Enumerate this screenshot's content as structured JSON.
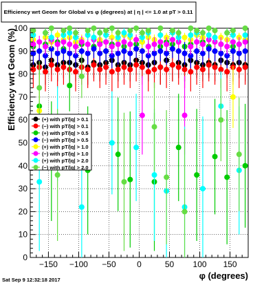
{
  "chart_data": {
    "type": "scatter",
    "title": "Efficiency wrt Geom for Global vs φ (degrees) at | η | <= 1.0 at pT > 0.11",
    "xlabel": "φ (degrees)",
    "ylabel": "Efficiency wrt Geom (%)",
    "xlim": [
      -180,
      180
    ],
    "ylim": [
      0,
      100
    ],
    "x_ticks": [
      -150,
      -100,
      -50,
      0,
      50,
      100,
      150
    ],
    "x_tick_labels": [
      "−150",
      "−100",
      "−50",
      "0",
      "50",
      "100",
      "150"
    ],
    "y_ticks": [
      0,
      10,
      20,
      30,
      40,
      50,
      60,
      70,
      80,
      90,
      100
    ],
    "y_tick_labels": [
      "0",
      "10",
      "20",
      "30",
      "40",
      "50",
      "60",
      "70",
      "80",
      "90",
      "100"
    ],
    "grid": true,
    "legend_position": "left-middle",
    "series": [
      {
        "name": "(+) with pT/|q| > 0.1",
        "color": "#000000",
        "marker": "circle",
        "x": [
          -175,
          -165,
          -155,
          -145,
          -135,
          -125,
          -115,
          -105,
          -95,
          -85,
          -75,
          -65,
          -55,
          -45,
          -35,
          -25,
          -15,
          -5,
          5,
          15,
          25,
          35,
          45,
          55,
          65,
          75,
          85,
          95,
          105,
          115,
          125,
          135,
          145,
          155,
          165,
          175
        ],
        "values": [
          84,
          85,
          83,
          86,
          84,
          85,
          85,
          84,
          86,
          83,
          85,
          84,
          85,
          86,
          84,
          85,
          84,
          86,
          85,
          84,
          85,
          83,
          86,
          84,
          85,
          84,
          86,
          85,
          84,
          85,
          84,
          86,
          85,
          84,
          85,
          84
        ]
      },
      {
        "name": "(−) with pT/|q| > 0.1",
        "color": "#ff0000",
        "marker": "circle",
        "x": [
          -175,
          -165,
          -155,
          -145,
          -135,
          -125,
          -115,
          -105,
          -95,
          -85,
          -75,
          -65,
          -55,
          -45,
          -35,
          -25,
          -15,
          -5,
          5,
          15,
          25,
          35,
          45,
          55,
          65,
          75,
          85,
          95,
          105,
          115,
          125,
          135,
          145,
          155,
          165,
          175
        ],
        "values": [
          82,
          83,
          81,
          84,
          82,
          83,
          82,
          81,
          83,
          82,
          84,
          82,
          83,
          81,
          82,
          83,
          82,
          84,
          83,
          81,
          82,
          83,
          82,
          84,
          83,
          82,
          81,
          83,
          82,
          84,
          83,
          82,
          81,
          83,
          82,
          83
        ]
      },
      {
        "name": "(+) with pT/|q| > 0.5",
        "color": "#00cc00",
        "marker": "circle",
        "x": [
          -175,
          -165,
          -155,
          -145,
          -135,
          -125,
          -115,
          -105,
          -95,
          -85,
          -75,
          -65,
          -55,
          -45,
          -35,
          -25,
          -15,
          -5,
          5,
          15,
          25,
          35,
          45,
          55,
          65,
          75,
          85,
          95,
          105,
          115,
          125,
          135,
          145,
          155,
          165,
          175
        ],
        "values": [
          92,
          66,
          93,
          42,
          94,
          91,
          75,
          92,
          93,
          38,
          92,
          94,
          90,
          93,
          45,
          92,
          34,
          93,
          94,
          92,
          33,
          92,
          94,
          93,
          48,
          92,
          93,
          36,
          94,
          92,
          44,
          93,
          35,
          92,
          93,
          40
        ]
      },
      {
        "name": "(−) with pT/|q| > 0.5",
        "color": "#0000ff",
        "marker": "circle",
        "x": [
          -175,
          -165,
          -155,
          -145,
          -135,
          -125,
          -115,
          -105,
          -95,
          -85,
          -75,
          -65,
          -55,
          -45,
          -35,
          -25,
          -15,
          -5,
          5,
          15,
          25,
          35,
          45,
          55,
          65,
          75,
          85,
          95,
          105,
          115,
          125,
          135,
          145,
          155,
          165,
          175
        ],
        "values": [
          89,
          90,
          88,
          91,
          89,
          90,
          89,
          88,
          90,
          89,
          91,
          89,
          90,
          88,
          89,
          90,
          89,
          91,
          90,
          88,
          89,
          90,
          89,
          91,
          90,
          89,
          88,
          90,
          89,
          91,
          90,
          89,
          88,
          90,
          89,
          90
        ]
      },
      {
        "name": "(+) with pT/|q| > 1.0",
        "color": "#ffff00",
        "marker": "circle",
        "x": [
          -175,
          -165,
          -155,
          -145,
          -135,
          -125,
          -115,
          -105,
          -95,
          -85,
          -75,
          -65,
          -55,
          -45,
          -35,
          -25,
          -15,
          -5,
          5,
          15,
          25,
          35,
          45,
          55,
          65,
          75,
          85,
          95,
          105,
          115,
          125,
          135,
          145,
          155,
          165,
          175
        ],
        "values": [
          95,
          64,
          96,
          94,
          97,
          95,
          96,
          94,
          95,
          97,
          96,
          95,
          94,
          96,
          95,
          97,
          96,
          95,
          94,
          96,
          95,
          97,
          96,
          95,
          94,
          96,
          95,
          97,
          96,
          95,
          94,
          96,
          95,
          70,
          96,
          95
        ]
      },
      {
        "name": "(−) with pT/|q| > 1.0",
        "color": "#ff00ff",
        "marker": "circle",
        "x": [
          -175,
          -165,
          -155,
          -145,
          -135,
          -125,
          -115,
          -105,
          -95,
          -85,
          -75,
          -65,
          -55,
          -45,
          -35,
          -25,
          -15,
          -5,
          5,
          15,
          25,
          35,
          45,
          55,
          65,
          75,
          85,
          95,
          105,
          115,
          125,
          135,
          145,
          155,
          165,
          175
        ],
        "values": [
          93,
          94,
          92,
          95,
          93,
          94,
          93,
          92,
          94,
          93,
          95,
          93,
          94,
          92,
          93,
          94,
          93,
          95,
          62,
          92,
          93,
          94,
          93,
          95,
          94,
          62,
          92,
          94,
          93,
          95,
          94,
          93,
          92,
          94,
          93,
          94
        ]
      },
      {
        "name": "(+) with pT/|q| > 2.0",
        "color": "#00ffff",
        "marker": "circle",
        "x": [
          -175,
          -165,
          -155,
          -145,
          -135,
          -125,
          -115,
          -105,
          -95,
          -85,
          -75,
          -65,
          -55,
          -45,
          -35,
          -25,
          -15,
          -5,
          5,
          15,
          25,
          35,
          45,
          55,
          65,
          75,
          85,
          95,
          105,
          115,
          125,
          135,
          145,
          155,
          165,
          175
        ],
        "values": [
          97,
          33,
          98,
          96,
          54,
          97,
          98,
          96,
          22,
          97,
          96,
          98,
          97,
          50,
          96,
          98,
          97,
          48,
          96,
          98,
          36,
          97,
          29,
          98,
          96,
          22,
          97,
          98,
          30,
          97,
          96,
          66,
          98,
          97,
          38,
          97
        ]
      },
      {
        "name": "(−) with pT/|q| > 2.0",
        "color": "#66dd44",
        "marker": "circle",
        "x": [
          -175,
          -165,
          -155,
          -145,
          -135,
          -125,
          -115,
          -105,
          -95,
          -85,
          -75,
          -65,
          -55,
          -45,
          -35,
          -25,
          -15,
          -5,
          5,
          15,
          25,
          35,
          45,
          55,
          65,
          75,
          85,
          95,
          105,
          115,
          125,
          135,
          145,
          155,
          165,
          175
        ],
        "values": [
          99,
          74,
          98,
          100,
          36,
          99,
          100,
          98,
          79,
          99,
          100,
          98,
          99,
          100,
          98,
          33,
          99,
          100,
          98,
          99,
          57,
          100,
          35,
          99,
          98,
          20,
          100,
          99,
          98,
          100,
          99,
          60,
          98,
          99,
          45,
          100
        ]
      }
    ],
    "annotations": []
  },
  "footer": {
    "timestamp": "Sat Sep  9 12:32:18 2017"
  }
}
